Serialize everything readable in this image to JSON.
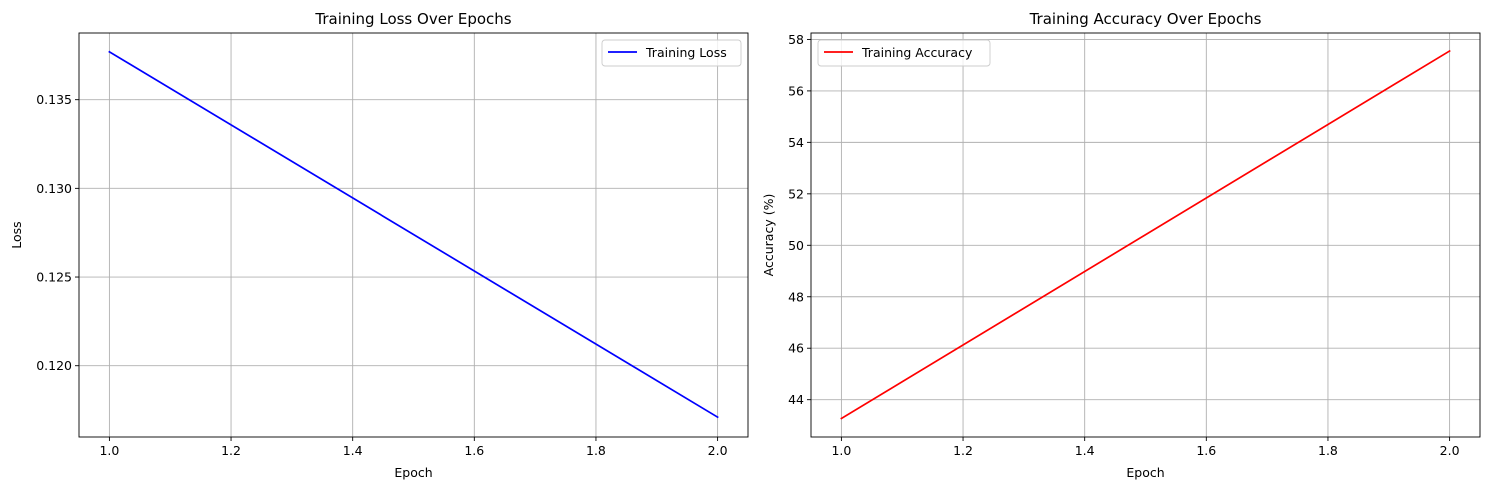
{
  "chart_data": [
    {
      "type": "line",
      "title": "Training Loss Over Epochs",
      "xlabel": "Epoch",
      "ylabel": "Loss",
      "xlim": [
        0.95,
        2.05
      ],
      "ylim": [
        0.11598,
        0.13876
      ],
      "xticks": [
        1.0,
        1.2,
        1.4,
        1.6,
        1.8,
        2.0
      ],
      "xtick_labels": [
        "1.0",
        "1.2",
        "1.4",
        "1.6",
        "1.8",
        "2.0"
      ],
      "yticks": [
        0.12,
        0.125,
        0.13,
        0.135
      ],
      "ytick_labels": [
        "0.120",
        "0.125",
        "0.130",
        "0.135"
      ],
      "grid": true,
      "legend_position": "upper right",
      "series": [
        {
          "name": "Training Loss",
          "color": "#0000ff",
          "x": [
            1,
            2
          ],
          "y": [
            0.1377,
            0.1171
          ]
        }
      ]
    },
    {
      "type": "line",
      "title": "Training Accuracy Over Epochs",
      "xlabel": "Epoch",
      "ylabel": "Accuracy (%)",
      "xlim": [
        0.95,
        2.05
      ],
      "ylim": [
        42.55,
        58.25
      ],
      "xticks": [
        1.0,
        1.2,
        1.4,
        1.6,
        1.8,
        2.0
      ],
      "xtick_labels": [
        "1.0",
        "1.2",
        "1.4",
        "1.6",
        "1.8",
        "2.0"
      ],
      "yticks": [
        44,
        46,
        48,
        50,
        52,
        54,
        56,
        58
      ],
      "ytick_labels": [
        "44",
        "46",
        "48",
        "50",
        "52",
        "54",
        "56",
        "58"
      ],
      "grid": true,
      "legend_position": "upper left",
      "series": [
        {
          "name": "Training Accuracy",
          "color": "#ff0000",
          "x": [
            1,
            2
          ],
          "y": [
            43.27,
            57.55
          ]
        }
      ]
    }
  ]
}
